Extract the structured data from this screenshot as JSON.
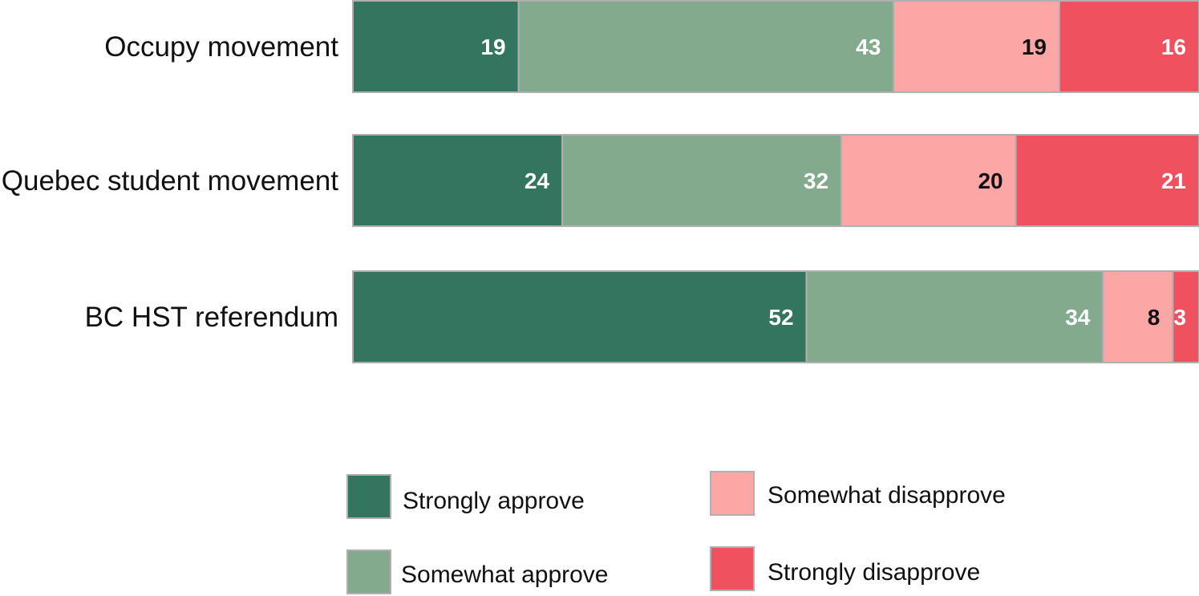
{
  "chart_data": {
    "type": "bar",
    "orientation": "horizontal",
    "stacked": true,
    "categories": [
      "Occupy movement",
      "Quebec student movement",
      "BC HST referendum"
    ],
    "series": [
      {
        "name": "Strongly approve",
        "values": [
          19,
          24,
          52
        ],
        "color": "#347560",
        "label_color": "#ffffff"
      },
      {
        "name": "Somewhat approve",
        "values": [
          43,
          32,
          34
        ],
        "color": "#84aa8d",
        "label_color": "#ffffff"
      },
      {
        "name": "Somewhat disapprove",
        "values": [
          19,
          20,
          8
        ],
        "color": "#fda6a6",
        "label_color": "#111111"
      },
      {
        "name": "Strongly disapprove",
        "values": [
          16,
          21,
          3
        ],
        "color": "#f0515f",
        "label_color": "#ffffff"
      }
    ],
    "xlim": [
      0,
      97
    ],
    "grid": false,
    "legend_position": "bottom"
  }
}
